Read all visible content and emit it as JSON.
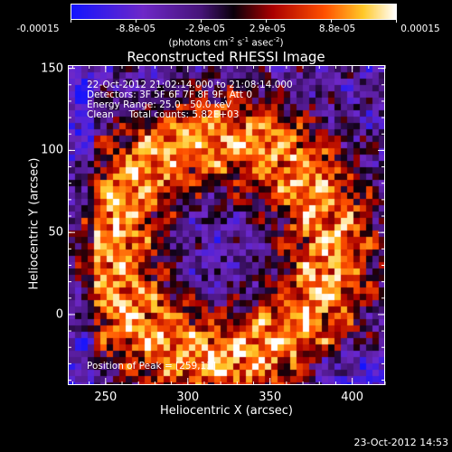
{
  "chart_data": {
    "type": "heatmap",
    "title": "Reconstructed RHESSI Image",
    "xlabel": "Heliocentric X (arcsec)",
    "ylabel": "Heliocentric Y (arcsec)",
    "xlim": [
      227,
      420
    ],
    "ylim": [
      -43,
      152
    ],
    "xticks": [
      250,
      300,
      350,
      400
    ],
    "yticks": [
      0,
      50,
      100,
      150
    ],
    "colorbar": {
      "min": -0.00015,
      "max": 0.00015,
      "tick_labels": [
        "-0.00015",
        "-8.8e-05",
        "-2.9e-05",
        "2.9e-05",
        "8.8e-05",
        "0.00015"
      ],
      "units_text": "(photons cm",
      "units_exp1": "-2",
      "units_mid": " s",
      "units_exp2": "-1",
      "units_mid2": " asec",
      "units_exp3": "-2",
      "units_end": ")"
    },
    "annotations": [
      "22-Oct-2012 21:02:14.000 to 21:08:14.000",
      "Detectors: 3F 5F 6F 7F 8F 9F, Att 0",
      "Energy Range: 25.0 - 50.0 keV",
      "Clean     Total counts: 5.82E+03"
    ],
    "peak_label": "Position of Peak = [259,13]",
    "grid": false
  },
  "footer": {
    "timestamp": "23-Oct-2012 14:53"
  }
}
